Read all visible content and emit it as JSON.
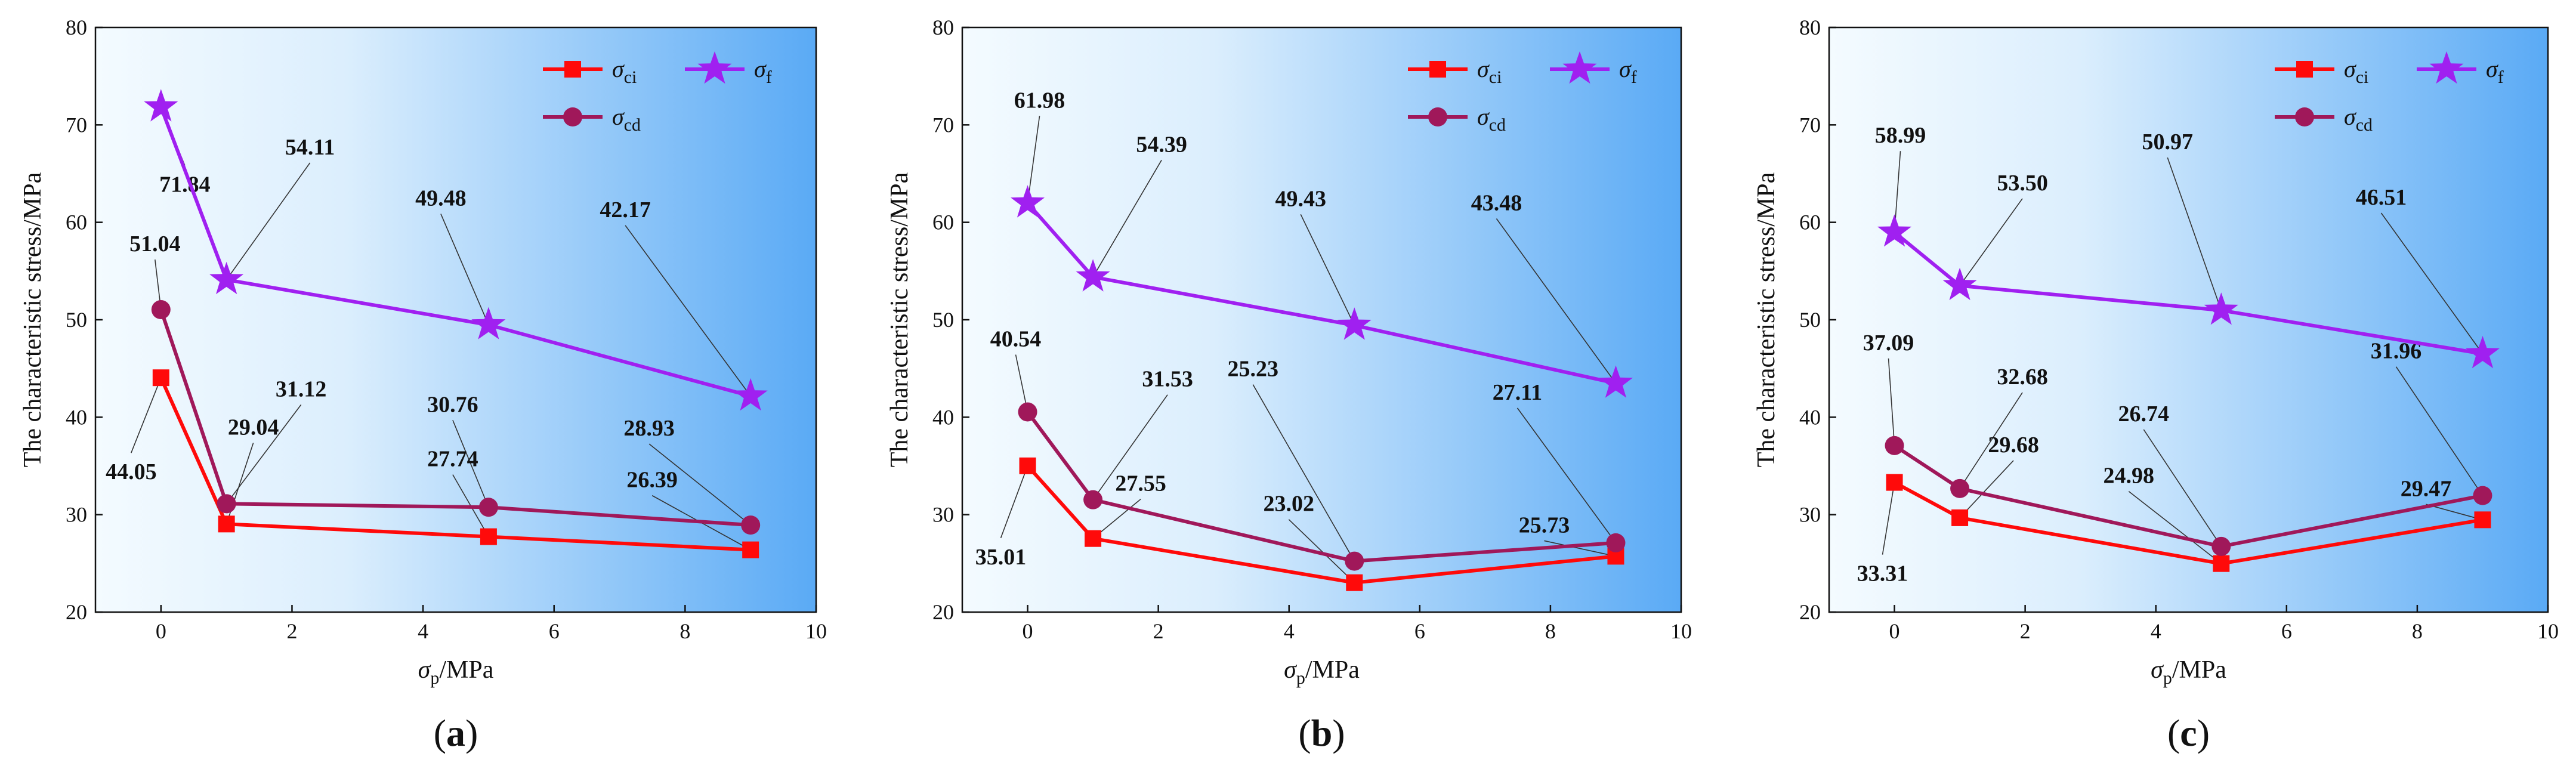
{
  "colors": {
    "ci": "#ff0a0a",
    "cd": "#a0185a",
    "f": "#a020f0",
    "bg_start": "#f4fbff",
    "bg_end": "#5aaaf5",
    "leader": "#333333"
  },
  "legend": {
    "ci_symbol": "σ",
    "ci_sub": "ci",
    "f_symbol": "σ",
    "f_sub": "f",
    "cd_symbol": "σ",
    "cd_sub": "cd"
  },
  "chart_data": [
    {
      "type": "line",
      "panel_label": "(a)",
      "panel_open": "(",
      "panel_letter": "a",
      "panel_close": ")",
      "xlabel_symbol": "σ",
      "xlabel_sub": "p",
      "xlabel_unit": "/MPa",
      "ylabel": "The characteristic stress/MPa",
      "xlim": [
        -1,
        10
      ],
      "ylim": [
        20,
        80
      ],
      "xticks": [
        0,
        2,
        4,
        6,
        8,
        10
      ],
      "yticks": [
        20,
        30,
        40,
        50,
        60,
        70,
        80
      ],
      "x": [
        0,
        1,
        5,
        9
      ],
      "series": [
        {
          "key": "ci",
          "name": "σci",
          "values": [
            44.05,
            29.04,
            27.74,
            26.39
          ],
          "labels": [
            "44.05",
            "29.04",
            "27.74",
            "26.39"
          ]
        },
        {
          "key": "cd",
          "name": "σcd",
          "values": [
            51.04,
            31.12,
            30.76,
            28.93
          ],
          "labels": [
            "51.04",
            "31.12",
            "30.76",
            "28.93"
          ]
        },
        {
          "key": "f",
          "name": "σf",
          "values": [
            71.84,
            54.11,
            49.48,
            42.17
          ],
          "labels": [
            "71.84",
            "54.11",
            "49.48",
            "42.17"
          ]
        }
      ]
    },
    {
      "type": "line",
      "panel_label": "(b)",
      "panel_open": "(",
      "panel_letter": "b",
      "panel_close": ")",
      "xlabel_symbol": "σ",
      "xlabel_sub": "p",
      "xlabel_unit": "/MPa",
      "ylabel": "The characteristic stress/MPa",
      "xlim": [
        -1,
        10
      ],
      "ylim": [
        20,
        80
      ],
      "xticks": [
        0,
        2,
        4,
        6,
        8,
        10
      ],
      "yticks": [
        20,
        30,
        40,
        50,
        60,
        70,
        80
      ],
      "x": [
        0,
        1,
        5,
        9
      ],
      "series": [
        {
          "key": "ci",
          "name": "σci",
          "values": [
            35.01,
            27.55,
            23.02,
            25.73
          ],
          "labels": [
            "35.01",
            "27.55",
            "23.02",
            "25.73"
          ]
        },
        {
          "key": "cd",
          "name": "σcd",
          "values": [
            40.54,
            31.53,
            25.23,
            27.11
          ],
          "labels": [
            "40.54",
            "31.53",
            "25.23",
            "27.11"
          ]
        },
        {
          "key": "f",
          "name": "σf",
          "values": [
            61.98,
            54.39,
            49.43,
            43.48
          ],
          "labels": [
            "61.98",
            "54.39",
            "49.43",
            "43.48"
          ]
        }
      ]
    },
    {
      "type": "line",
      "panel_label": "(c)",
      "panel_open": "(",
      "panel_letter": "c",
      "panel_close": ")",
      "xlabel_symbol": "σ",
      "xlabel_sub": "p",
      "xlabel_unit": "/MPa",
      "ylabel": "The characteristic stress/MPa",
      "xlim": [
        -1,
        10
      ],
      "ylim": [
        20,
        80
      ],
      "xticks": [
        0,
        2,
        4,
        6,
        8,
        10
      ],
      "yticks": [
        20,
        30,
        40,
        50,
        60,
        70,
        80
      ],
      "x": [
        0,
        1,
        5,
        9
      ],
      "series": [
        {
          "key": "ci",
          "name": "σci",
          "values": [
            33.31,
            29.68,
            24.98,
            29.47
          ],
          "labels": [
            "33.31",
            "29.68",
            "24.98",
            "29.47"
          ]
        },
        {
          "key": "cd",
          "name": "σcd",
          "values": [
            37.09,
            32.68,
            26.74,
            31.96
          ],
          "labels": [
            "37.09",
            "32.68",
            "26.74",
            "31.96"
          ]
        },
        {
          "key": "f",
          "name": "σf",
          "values": [
            58.99,
            53.5,
            50.97,
            46.51
          ],
          "labels": [
            "58.99",
            "53.50",
            "50.97",
            "46.51"
          ]
        }
      ]
    }
  ]
}
